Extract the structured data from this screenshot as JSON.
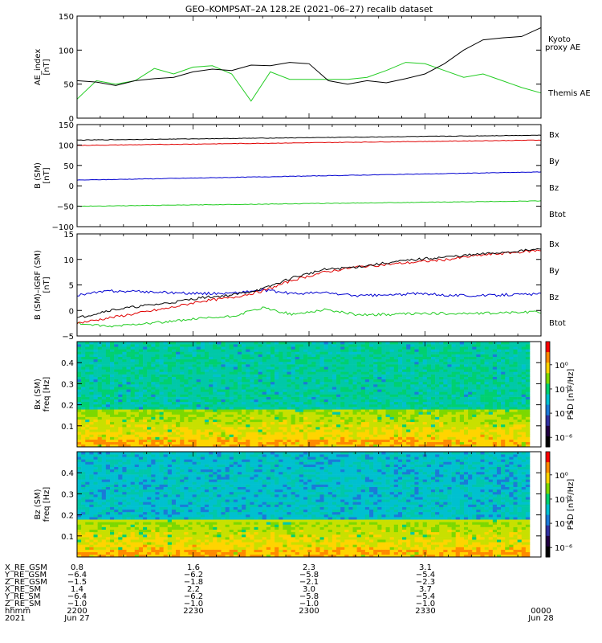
{
  "title": "GEO–KOMPSAT–2A 128.2E (2021–06–27) recalib dataset",
  "colors": {
    "black": "#000000",
    "red": "#e00000",
    "blue": "#0000d0",
    "green": "#22cc22",
    "green_label": "#22cc22"
  },
  "chart_data": [
    {
      "type": "line",
      "id": "ae",
      "ylabel_lines": [
        "AE_index",
        "[nT]"
      ],
      "ylim": [
        0,
        150
      ],
      "yticks": [
        0,
        50,
        100,
        150
      ],
      "x": [
        2200,
        2205,
        2210,
        2215,
        2220,
        2225,
        2230,
        2235,
        2240,
        2245,
        2250,
        2255,
        2300,
        2305,
        2310,
        2315,
        2320,
        2325,
        2330,
        2335,
        2340,
        2345,
        2350,
        2355,
        2400
      ],
      "series": [
        {
          "name": "Kyoto proxy AE",
          "label_lines": [
            "Kyoto",
            "proxy AE"
          ],
          "color": "#22cc22",
          "values": [
            28,
            55,
            50,
            55,
            73,
            65,
            75,
            77,
            65,
            25,
            68,
            57,
            57,
            57,
            57,
            60,
            70,
            82,
            80,
            70,
            60,
            65,
            55,
            45,
            37
          ]
        },
        {
          "name": "Themis AE",
          "label_lines": [
            "Themis AE"
          ],
          "color": "#000000",
          "values": [
            55,
            53,
            48,
            55,
            58,
            60,
            68,
            72,
            70,
            78,
            77,
            82,
            80,
            55,
            50,
            55,
            52,
            58,
            65,
            80,
            100,
            115,
            118,
            120,
            133
          ]
        }
      ]
    },
    {
      "type": "line",
      "id": "b_sm",
      "ylabel_lines": [
        "B (SM)",
        "[nT]"
      ],
      "ylim": [
        -100,
        150
      ],
      "yticks": [
        -100,
        -50,
        0,
        50,
        100,
        150
      ],
      "x": [
        2200,
        2400
      ],
      "series": [
        {
          "name": "Bx",
          "color": "#0000d0",
          "values": [
            14,
            34
          ]
        },
        {
          "name": "By",
          "color": "#22cc22",
          "values": [
            -50,
            -37
          ]
        },
        {
          "name": "Bz",
          "color": "#e00000",
          "values": [
            99,
            112
          ]
        },
        {
          "name": "Btot",
          "color": "#000000",
          "values": [
            112,
            124
          ]
        }
      ]
    },
    {
      "type": "line",
      "id": "b_igrf",
      "ylabel_lines": [
        "B (SM)–IGRF (SM)",
        "[nT]"
      ],
      "ylim": [
        -5,
        15
      ],
      "yticks": [
        -5,
        0,
        5,
        10,
        15
      ],
      "x": [
        2200,
        2210,
        2220,
        2230,
        2240,
        2250,
        2300,
        2305,
        2310,
        2315,
        2320,
        2325,
        2330,
        2340,
        2350,
        2400
      ],
      "series": [
        {
          "name": "Bx",
          "color": "#0000d0",
          "values": [
            3.0,
            3.8,
            3.7,
            3.5,
            3.3,
            3.4,
            4.0,
            3.3,
            3.5,
            2.9,
            3.0,
            3.3,
            3.0,
            2.9,
            3.1,
            3.2
          ]
        },
        {
          "name": "By",
          "color": "#22cc22",
          "values": [
            -2.5,
            -3.2,
            -2.6,
            -2.2,
            -1.6,
            -1.2,
            0.5,
            -0.8,
            0.2,
            -0.8,
            -0.8,
            -0.6,
            -0.6,
            -0.6,
            -0.4,
            -0.3
          ]
        },
        {
          "name": "Bz",
          "color": "#e00000",
          "values": [
            -2.5,
            -1.5,
            -0.5,
            0.5,
            1.8,
            2.5,
            3.8,
            6.0,
            7.5,
            8.5,
            9.0,
            9.5,
            10.0,
            10.8,
            11.3,
            11.8
          ]
        },
        {
          "name": "Btot",
          "color": "#000000",
          "values": [
            -1.5,
            0.0,
            0.8,
            1.5,
            2.5,
            3.0,
            4.2,
            6.5,
            8.0,
            8.5,
            9.3,
            10.0,
            10.5,
            11.0,
            11.5,
            12.0
          ]
        }
      ]
    },
    {
      "type": "heatmap",
      "id": "bx_psd",
      "ylabel_lines": [
        "Bx (SM)",
        "freq [Hz]"
      ],
      "ylim": [
        0,
        0.5
      ],
      "yticks": [
        0.1,
        0.2,
        0.3,
        0.4
      ],
      "x_range": [
        2200,
        2400
      ],
      "colorbar_label": "PSD [nT²/Hz]",
      "colorbar_ticks": [
        "10⁰",
        "10⁻²",
        "10⁻⁴",
        "10⁻⁶"
      ],
      "description_bands": "high PSD (yellow/orange) below ~0.18 Hz, green/cyan above"
    },
    {
      "type": "heatmap",
      "id": "bz_psd",
      "ylabel_lines": [
        "Bz (SM)",
        "freq [Hz]"
      ],
      "ylim": [
        0,
        0.5
      ],
      "yticks": [
        0.1,
        0.2,
        0.3,
        0.4
      ],
      "x_range": [
        2200,
        2400
      ],
      "colorbar_label": "PSD [nT²/Hz]",
      "colorbar_ticks": [
        "10⁰",
        "10⁻²",
        "10⁻⁴",
        "10⁻⁶"
      ],
      "description_bands": "yellow line near 0.17 Hz, low-frequency yellow/orange, cyan/blue above"
    }
  ],
  "footer": {
    "row_labels": [
      "X_RE_GSM",
      "Y_RE_GSM",
      "Z_RE_GSM",
      "X_RE_SM",
      "Y_RE_SM",
      "Z_RE_SM",
      "hhmm",
      "2021"
    ],
    "columns": [
      {
        "values": [
          "0.8",
          "−6.4",
          "−1.5",
          "1.4",
          "−6.4",
          "−1.0",
          "2200",
          "Jun 27"
        ]
      },
      {
        "values": [
          "1.6",
          "−6.2",
          "−1.8",
          "2.2",
          "−6.2",
          "−1.0",
          "2230",
          ""
        ]
      },
      {
        "values": [
          "2.3",
          "−5.8",
          "−2.1",
          "3.0",
          "−5.8",
          "−1.0",
          "2300",
          ""
        ]
      },
      {
        "values": [
          "3.1",
          "−5.4",
          "−2.3",
          "3.7",
          "−5.4",
          "−1.0",
          "2330",
          ""
        ]
      },
      {
        "values": [
          "",
          "",
          "",
          "",
          "",
          "",
          "0000",
          "Jun 28"
        ]
      }
    ]
  }
}
